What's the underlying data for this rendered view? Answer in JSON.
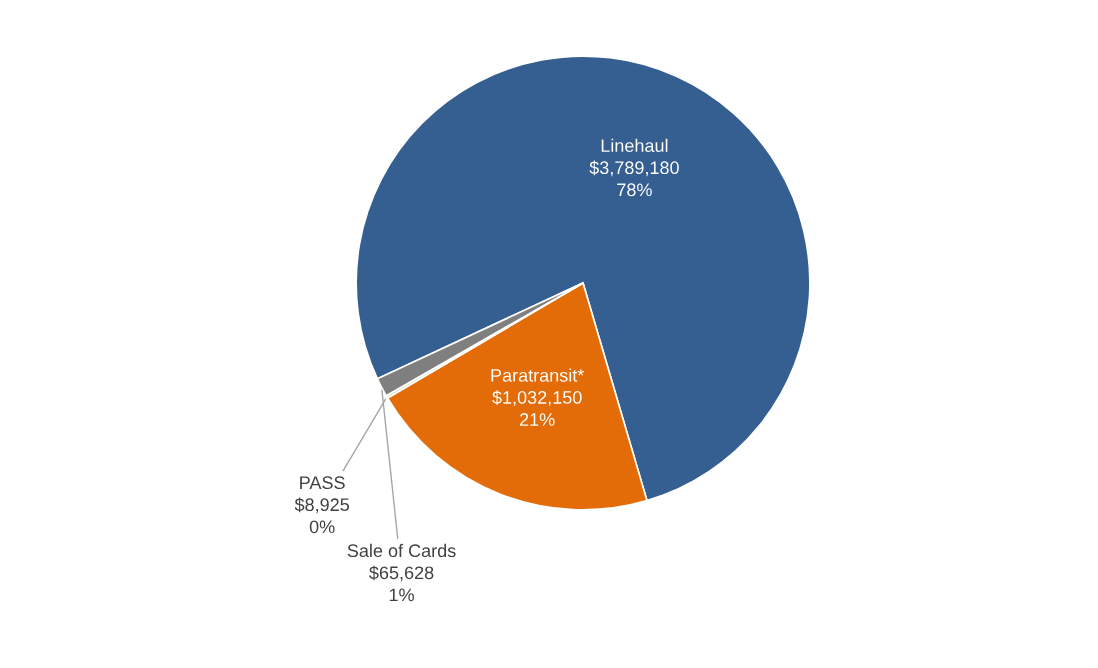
{
  "chart_data": {
    "type": "pie",
    "categories": [
      "Linehaul",
      "Paratransit*",
      "PASS",
      "Sale of Cards"
    ],
    "values": [
      3789180,
      1032150,
      8925,
      65628
    ],
    "value_labels": [
      "$3,789,180\n78%",
      "$1,032,150\n21%",
      "$8,925\n0%",
      "$65,628\n1%"
    ],
    "colors": [
      "#355e91",
      "#e36c09",
      "#c4d79b",
      "#7f7f7f"
    ],
    "legend": false
  }
}
